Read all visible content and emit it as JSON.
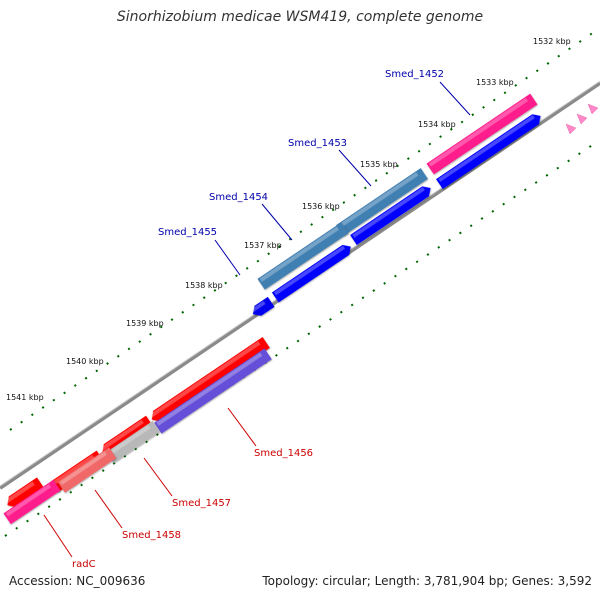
{
  "title": "Sinorhizobium medicae WSM419, complete genome",
  "footer": {
    "accession": "Accession: NC_009636",
    "topology": "Topology: circular; Length: 3,781,904 bp; Genes: 3,592"
  },
  "ticks": [
    {
      "label": "1532 kbp",
      "name": "tick-1532kbp"
    },
    {
      "label": "1533 kbp",
      "name": "tick-1533kbp"
    },
    {
      "label": "1534 kbp",
      "name": "tick-1534kbp"
    },
    {
      "label": "1535 kbp",
      "name": "tick-1535kbp"
    },
    {
      "label": "1536 kbp",
      "name": "tick-1536kbp"
    },
    {
      "label": "1537 kbp",
      "name": "tick-1537kbp"
    },
    {
      "label": "1538 kbp",
      "name": "tick-1538kbp"
    },
    {
      "label": "1539 kbp",
      "name": "tick-1539kbp"
    },
    {
      "label": "1540 kbp",
      "name": "tick-1540kbp"
    },
    {
      "label": "1541 kbp",
      "name": "tick-1541kbp"
    }
  ],
  "genes_forward": [
    {
      "label": "Smed_1452",
      "color": "#ff1a8c"
    },
    {
      "label": "Smed_1453",
      "color": "#3f7fb2"
    },
    {
      "label": "Smed_1454",
      "color": "#3f7fb2"
    },
    {
      "label": "Smed_1455",
      "color": "#0000ee"
    }
  ],
  "genes_reverse": [
    {
      "label": "Smed_1456",
      "color": "#6650d8"
    },
    {
      "label": "Smed_1457",
      "color": "#b8b8b8"
    },
    {
      "label": "Smed_1458",
      "color": "#f06868"
    },
    {
      "label": "radC",
      "color": "#ff1a8c"
    }
  ],
  "colors": {
    "forward_label": "#0000aa",
    "reverse_label": "#cc0000",
    "tick": "#006600",
    "backbone": "#808080",
    "red_strand": "#ff0000",
    "blue_strand": "#0000ff"
  }
}
